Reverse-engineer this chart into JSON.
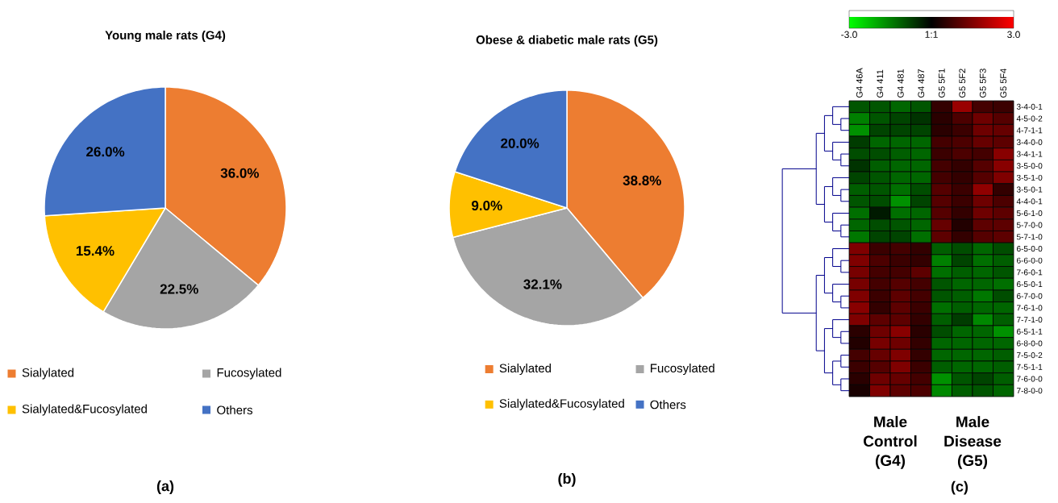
{
  "chart_data": [
    {
      "type": "pie",
      "title": "Young male rats (G4)",
      "categories": [
        "Sialylated",
        "Fucosylated",
        "Sialylated&Fucosylated",
        "Others"
      ],
      "values": [
        36.0,
        22.5,
        15.4,
        26.0
      ],
      "value_labels": [
        "36.0%",
        "22.5%",
        "15.4%",
        "26.0%"
      ],
      "colors": [
        "#ed7d31",
        "#a5a5a5",
        "#ffc000",
        "#4472c4"
      ],
      "legend": "bottom",
      "annotations": [
        "(a)"
      ]
    },
    {
      "type": "pie",
      "title": "Obese & diabetic male rats (G5)",
      "categories": [
        "Sialylated",
        "Fucosylated",
        "Sialylated&Fucosylated",
        "Others"
      ],
      "values": [
        38.8,
        32.1,
        9.0,
        20.0
      ],
      "value_labels": [
        "38.8%",
        "32.1%",
        "9.0%",
        "20.0%"
      ],
      "colors": [
        "#ed7d31",
        "#a5a5a5",
        "#ffc000",
        "#4472c4"
      ],
      "legend": "bottom",
      "annotations": [
        "(b)"
      ]
    },
    {
      "type": "heatmap",
      "categories": [
        "G4 46A",
        "G4 411",
        "G4 481",
        "G4 487",
        "G5 5F1",
        "G5 5F2",
        "G5 5F3",
        "G5 5F4"
      ],
      "y_categories": [
        "3-4-0-1",
        "4-5-0-2",
        "4-7-1-1",
        "3-4-0-0",
        "3-4-1-1",
        "3-5-0-0",
        "3-5-1-0",
        "3-5-0-1",
        "4-4-0-1",
        "5-6-1-0",
        "5-7-0-0",
        "5-7-1-0",
        "6-5-0-0",
        "6-6-0-0",
        "7-6-0-1",
        "6-5-0-1",
        "6-7-0-0",
        "7-6-1-0",
        "7-7-1-0",
        "6-5-1-1",
        "6-8-0-0",
        "7-5-0-2",
        "7-5-1-1",
        "7-6-0-0",
        "7-8-0-0"
      ],
      "cells": [
        [
          -1.0,
          -1.0,
          -1.2,
          -1.0,
          0.6,
          1.8,
          0.8,
          0.7
        ],
        [
          -1.5,
          -1.0,
          -0.8,
          -0.6,
          0.5,
          0.9,
          1.3,
          1.0
        ],
        [
          -1.7,
          -0.8,
          -0.8,
          -0.8,
          0.5,
          0.7,
          1.3,
          1.2
        ],
        [
          -0.7,
          -1.2,
          -1.2,
          -1.2,
          0.8,
          0.9,
          1.2,
          1.1
        ],
        [
          -0.9,
          -0.9,
          -1.1,
          -1.2,
          0.7,
          0.9,
          0.8,
          1.6
        ],
        [
          -0.6,
          -1.1,
          -1.2,
          -1.2,
          0.8,
          0.6,
          1.0,
          1.6
        ],
        [
          -0.8,
          -1.0,
          -1.2,
          -1.2,
          0.8,
          0.6,
          1.0,
          1.5
        ],
        [
          -1.1,
          -1.0,
          -1.3,
          -0.9,
          1.0,
          0.7,
          1.7,
          0.6
        ],
        [
          -1.0,
          -0.9,
          -1.7,
          -0.8,
          1.0,
          0.7,
          1.3,
          0.9
        ],
        [
          -1.3,
          -0.3,
          -1.3,
          -1.2,
          1.0,
          0.6,
          1.3,
          1.1
        ],
        [
          -1.2,
          -0.9,
          -1.0,
          -1.2,
          1.2,
          0.4,
          1.1,
          1.1
        ],
        [
          -1.4,
          -0.8,
          -0.8,
          -1.3,
          1.1,
          0.6,
          1.0,
          1.1
        ],
        [
          1.5,
          0.7,
          0.8,
          0.6,
          -1.1,
          -0.9,
          -1.2,
          -0.9
        ],
        [
          1.5,
          0.9,
          0.7,
          0.6,
          -1.5,
          -0.8,
          -1.3,
          -1.1
        ],
        [
          1.4,
          0.8,
          0.8,
          1.1,
          -1.3,
          -1.1,
          -1.2,
          -1.0
        ],
        [
          1.4,
          0.8,
          1.0,
          0.8,
          -1.0,
          -1.2,
          -1.2,
          -1.3
        ],
        [
          1.5,
          0.7,
          1.1,
          0.8,
          -1.0,
          -1.1,
          -1.4,
          -0.9
        ],
        [
          1.6,
          0.6,
          1.1,
          0.7,
          -1.3,
          -1.1,
          -1.2,
          -1.2
        ],
        [
          1.5,
          1.1,
          1.1,
          0.6,
          -1.1,
          -0.7,
          -1.6,
          -1.1
        ],
        [
          0.5,
          1.3,
          1.6,
          0.5,
          -0.9,
          -1.2,
          -1.2,
          -1.7
        ],
        [
          0.4,
          1.4,
          1.3,
          0.6,
          -1.2,
          -1.2,
          -1.2,
          -1.2
        ],
        [
          0.8,
          1.2,
          1.5,
          0.6,
          -1.2,
          -1.2,
          -1.2,
          -1.1
        ],
        [
          0.7,
          1.0,
          1.5,
          0.7,
          -1.1,
          -1.2,
          -1.2,
          -1.1
        ],
        [
          0.5,
          1.3,
          1.2,
          0.8,
          -1.7,
          -1.0,
          -0.8,
          -1.1
        ],
        [
          0.3,
          1.5,
          1.1,
          0.9,
          -1.6,
          -1.1,
          -1.0,
          -1.2
        ]
      ],
      "clim": [
        -3,
        3
      ],
      "cticks": [
        {
          "value": -3,
          "label": "-3.0"
        },
        {
          "value": 0,
          "label": "1:1"
        },
        {
          "value": 3,
          "label": "3.0"
        }
      ],
      "annotations": [
        "Male Control (G4)",
        "Male Disease (G5)",
        "(c)"
      ]
    }
  ]
}
